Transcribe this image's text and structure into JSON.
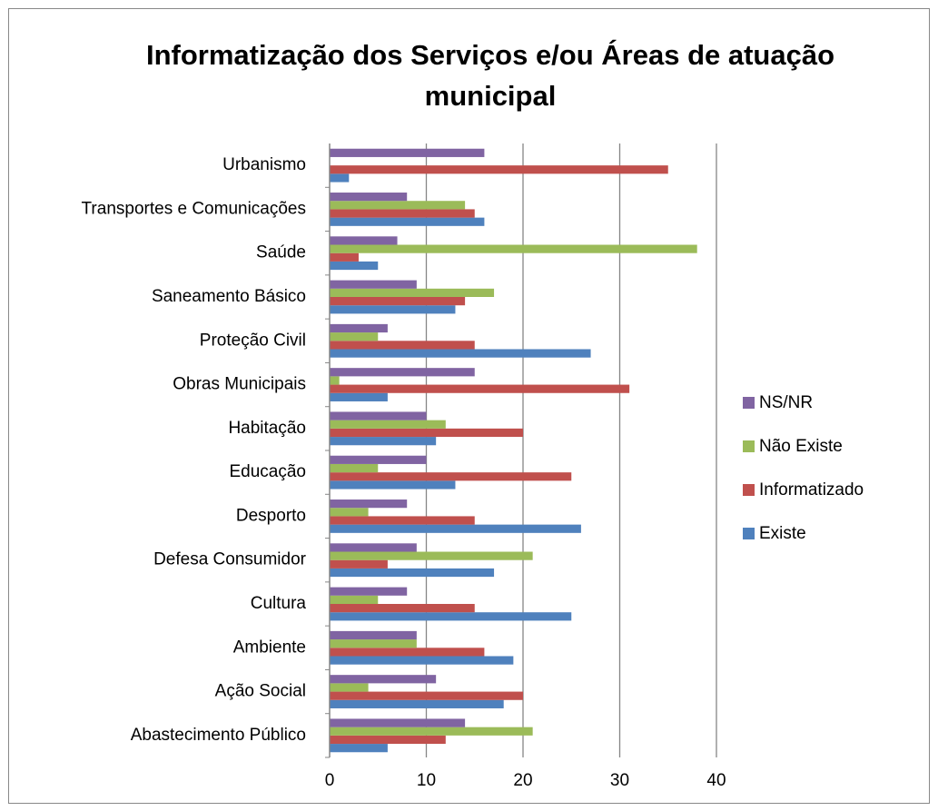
{
  "chart_data": {
    "type": "barh",
    "title": "Informatização dos Serviços e/ou Áreas de atuação municipal",
    "categories": [
      "Abastecimento Público",
      "Ação Social",
      "Ambiente",
      "Cultura",
      "Defesa Consumidor",
      "Desporto",
      "Educação",
      "Habitação",
      "Obras Municipais",
      "Proteção Civil",
      "Saneamento Básico",
      "Saúde",
      "Transportes e Comunicações",
      "Urbanismo"
    ],
    "series": [
      {
        "name": "Existe",
        "color": "#4f81bd",
        "values": [
          6,
          18,
          19,
          25,
          17,
          26,
          13,
          11,
          6,
          27,
          13,
          5,
          16,
          2
        ]
      },
      {
        "name": "Informatizado",
        "color": "#c0504d",
        "values": [
          12,
          20,
          16,
          15,
          6,
          15,
          25,
          20,
          31,
          15,
          14,
          3,
          15,
          35
        ]
      },
      {
        "name": "Não Existe",
        "color": "#9bbb59",
        "values": [
          21,
          4,
          9,
          5,
          21,
          4,
          5,
          12,
          1,
          5,
          17,
          38,
          14,
          0
        ]
      },
      {
        "name": "NS/NR",
        "color": "#8064a2",
        "values": [
          14,
          11,
          9,
          8,
          9,
          8,
          10,
          10,
          15,
          6,
          9,
          7,
          8,
          16
        ]
      }
    ],
    "xlim": [
      0,
      40
    ],
    "xticks": [
      0,
      10,
      20,
      30,
      40
    ],
    "grid": true,
    "legend": "right"
  }
}
